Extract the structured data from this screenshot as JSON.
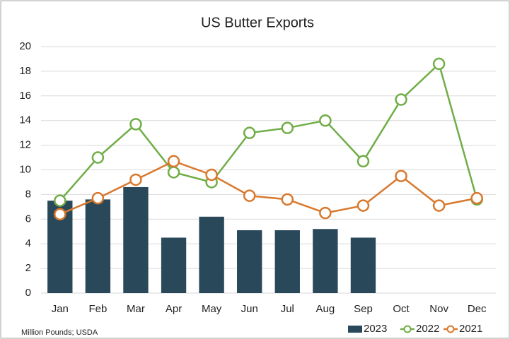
{
  "chart_data": {
    "type": "combo",
    "title": "US Butter Exports",
    "note": "Million Pounds; USDA",
    "categories": [
      "Jan",
      "Feb",
      "Mar",
      "Apr",
      "May",
      "Jun",
      "Jul",
      "Aug",
      "Sep",
      "Oct",
      "Nov",
      "Dec"
    ],
    "series": [
      {
        "name": "2023",
        "type": "bar",
        "color": "#29495a",
        "values": [
          7.5,
          7.6,
          8.6,
          4.5,
          6.2,
          5.1,
          5.1,
          5.2,
          4.5,
          null,
          null,
          null
        ]
      },
      {
        "name": "2022",
        "type": "line",
        "color": "#70ad47",
        "values": [
          7.5,
          11.0,
          13.7,
          9.8,
          9.0,
          13.0,
          13.4,
          14.0,
          10.7,
          15.7,
          18.6,
          7.6
        ]
      },
      {
        "name": "2021",
        "type": "line",
        "color": "#d9782d",
        "values": [
          6.4,
          7.7,
          9.2,
          10.7,
          9.6,
          7.9,
          7.6,
          6.5,
          7.1,
          9.5,
          7.1,
          7.7
        ]
      }
    ],
    "ylim": [
      0,
      20
    ],
    "yticks": [
      0,
      2,
      4,
      6,
      8,
      10,
      12,
      14,
      16,
      18,
      20
    ],
    "grid": true
  }
}
